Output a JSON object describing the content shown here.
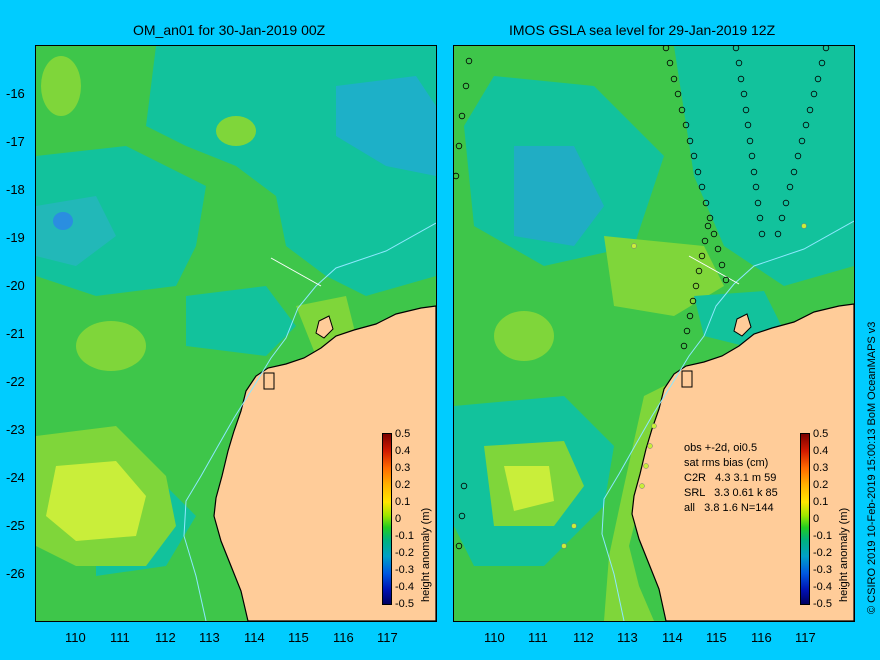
{
  "left_panel": {
    "title": "OM_an01 for 30-Jan-2019 00Z"
  },
  "right_panel": {
    "title": "IMOS GSLA sea level  for 29-Jan-2019 12Z",
    "stats": {
      "line1": "obs +-2d, oi0.5",
      "line2": "sat rms bias (cm)",
      "line3": "C2R   4.3 3.1 m 59",
      "line4": "SRL   3.3 0.61 k 85",
      "line5": "all   3.8 1.6 N=144"
    }
  },
  "axes": {
    "lat_ticks": [
      "-16",
      "-17",
      "-18",
      "-19",
      "-20",
      "-21",
      "-22",
      "-23",
      "-24",
      "-25",
      "-26"
    ],
    "lon_ticks": [
      "110",
      "111",
      "112",
      "113",
      "114",
      "115",
      "116",
      "117"
    ]
  },
  "colorbar": {
    "label": "height anomaly (m)",
    "ticks": [
      "0.5",
      "0.4",
      "0.3",
      "0.2",
      "0.1",
      "0",
      "-0.1",
      "-0.2",
      "-0.3",
      "-0.4",
      "-0.5"
    ]
  },
  "credit": "© CSIRO 2019   10-Feb-2019 15:00:13 BoM OceanMAPS v3",
  "colors": {
    "background": "#00ccff",
    "land": "#ffcc99",
    "ocean_base": "#3ec64a"
  }
}
